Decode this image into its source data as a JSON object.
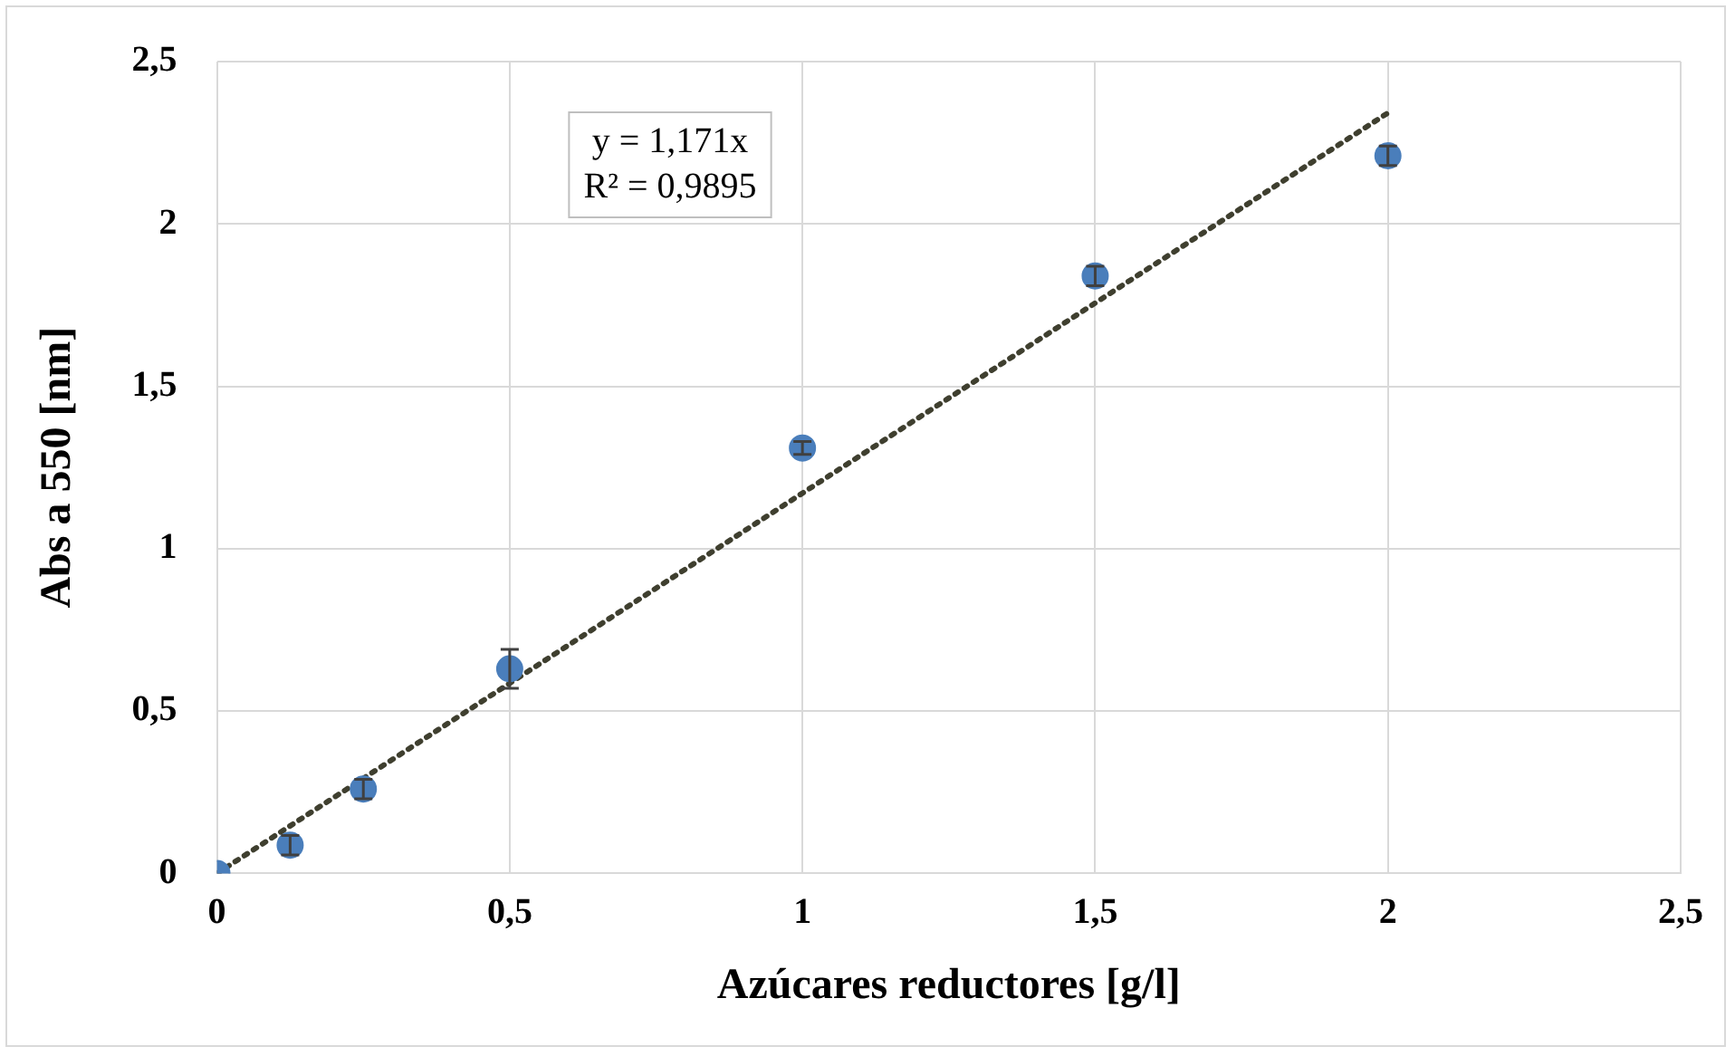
{
  "chart_data": {
    "type": "scatter",
    "xlabel": "Azúcares reductores [g/l]",
    "ylabel": "Abs a 550 [nm]",
    "xlim": [
      0,
      2.5
    ],
    "ylim": [
      0,
      2.5
    ],
    "xticks": [
      0,
      {
        "value": 0.5,
        "label": "0,5"
      },
      1,
      {
        "value": 1.5,
        "label": "1,5"
      },
      2,
      {
        "value": 2.5,
        "label": "2,5"
      }
    ],
    "yticks": [
      0,
      {
        "value": 0.5,
        "label": "0,5"
      },
      1,
      {
        "value": 1.5,
        "label": "1,5"
      },
      2,
      {
        "value": 2.5,
        "label": "2,5"
      }
    ],
    "grid": true,
    "legend": false,
    "annotations": [
      "y = 1,171x",
      "R² = 0,9895"
    ],
    "series": [
      {
        "marker": "circle",
        "color": "#4a7ebb",
        "x": [
          0,
          0.125,
          0.25,
          0.5,
          1,
          1.5,
          2
        ],
        "values": [
          0,
          0.087,
          0.26,
          0.63,
          1.31,
          1.84,
          2.21
        ],
        "errors": [
          null,
          0.03,
          0.03,
          0.06,
          0.02,
          0.03,
          0.03
        ]
      },
      {
        "type": "line",
        "marker": "none",
        "color": "#3f3f2f",
        "line_style": "dotted",
        "x": [
          0,
          2
        ],
        "values": [
          0,
          2.342
        ]
      }
    ]
  }
}
